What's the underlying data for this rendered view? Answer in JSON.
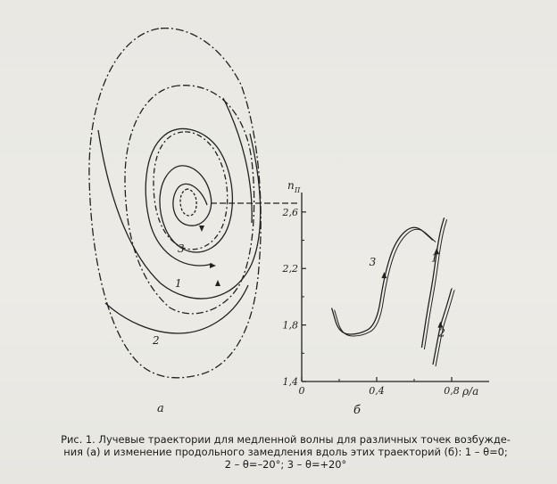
{
  "figure": {
    "panel_a_label": "а",
    "panel_b_label": "б",
    "panel_a_curve_labels": [
      "1",
      "2",
      "3"
    ],
    "panel_b_curve_labels": [
      "1",
      "2",
      "3"
    ],
    "y_axis_label": "n",
    "y_axis_subscript": "II",
    "x_axis_label": "ρ/a",
    "y_ticks": [
      "1,4",
      "1,8",
      "2,2",
      "2,6"
    ],
    "x_ticks": [
      "0",
      "0,4",
      "0,8"
    ]
  },
  "caption": {
    "line1": "Рис. 1. Лучевые траектории для медленной волны для различных точек возбужде-",
    "line2": "ния (а) и изменение продольного замедления вдоль этих траекторий (б): 1 – θ=0;",
    "line3": "2 – θ=–20°; 3 – θ=+20°"
  },
  "chart_data": {
    "type": "line",
    "xlabel": "ρ/a",
    "ylabel": "n_II",
    "xlim": [
      0,
      1.0
    ],
    "ylim": [
      1.4,
      2.7
    ],
    "x_ticks": [
      0,
      0.4,
      0.8
    ],
    "y_ticks": [
      1.4,
      1.8,
      2.2,
      2.6
    ],
    "series": [
      {
        "name": "1",
        "x": [
          0.64,
          0.67,
          0.7,
          0.72,
          0.74,
          0.76
        ],
        "y": [
          1.64,
          1.9,
          2.12,
          2.32,
          2.47,
          2.56
        ]
      },
      {
        "name": "2",
        "x": [
          0.7,
          0.72,
          0.74,
          0.77,
          0.8
        ],
        "y": [
          1.52,
          1.66,
          1.8,
          1.92,
          2.06
        ]
      },
      {
        "name": "3",
        "x": [
          0.16,
          0.2,
          0.3,
          0.4,
          0.44,
          0.5,
          0.6,
          0.7
        ],
        "y": [
          1.92,
          1.74,
          1.73,
          1.8,
          2.15,
          2.4,
          2.52,
          2.4
        ]
      }
    ]
  }
}
